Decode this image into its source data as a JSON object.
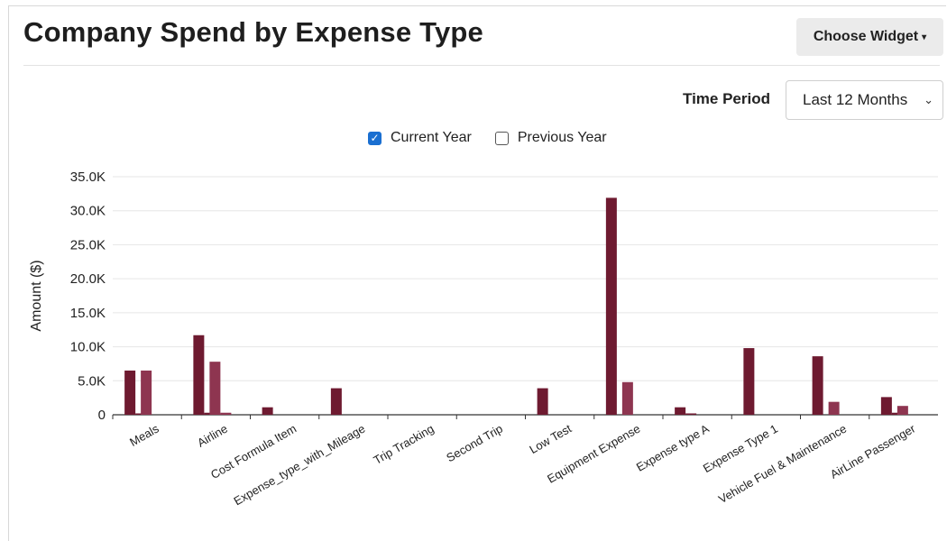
{
  "header": {
    "title": "Company Spend by Expense Type",
    "choose_widget_label": "Choose Widget",
    "caret_glyph": "▾"
  },
  "filters": {
    "time_period_label": "Time Period",
    "time_period_value": "Last 12 Months",
    "chevron_glyph": "⌄"
  },
  "legend": {
    "current_label": "Current Year",
    "current_checked": true,
    "previous_label": "Previous Year",
    "previous_checked": false,
    "check_glyph": "✓"
  },
  "colors": {
    "current_year": "#6e1a30",
    "previous_year": "#8e3550",
    "checkbox_checked": "#1a6fd1"
  },
  "chart_data": {
    "type": "bar",
    "title": "Company Spend by Expense Type",
    "xlabel": "",
    "ylabel": "Amount ($)",
    "ylim": [
      0,
      35000
    ],
    "yticks": [
      0,
      5000,
      10000,
      15000,
      20000,
      25000,
      30000,
      35000
    ],
    "ytick_labels": [
      "0",
      "5.0K",
      "10.0K",
      "15.0K",
      "20.0K",
      "25.0K",
      "30.0K",
      "35.0K"
    ],
    "grid": true,
    "categories": [
      "Meals",
      "Airline",
      "Cost Formula Item",
      "Expense_type_with_Mileage",
      "Trip Tracking",
      "Second Trip",
      "Low Test",
      "Equipment Expense",
      "Expense type A",
      "Expense Type 1",
      "Vehicle Fuel & Maintenance",
      "AirLine Passenger"
    ],
    "series": [
      {
        "name": "Current Year",
        "values": [
          6500,
          11700,
          1100,
          3900,
          0,
          0,
          3900,
          31900,
          1100,
          9800,
          8600,
          2600
        ]
      },
      {
        "name": "Current Year",
        "values": [
          200,
          300,
          0,
          0,
          0,
          0,
          0,
          0,
          200,
          0,
          0,
          300
        ]
      },
      {
        "name": "Previous Year",
        "values": [
          6500,
          7800,
          0,
          0,
          0,
          0,
          0,
          4800,
          0,
          0,
          1900,
          1300
        ]
      },
      {
        "name": "Previous Year",
        "values": [
          0,
          300,
          0,
          0,
          0,
          0,
          0,
          0,
          0,
          0,
          0,
          0
        ]
      }
    ]
  }
}
